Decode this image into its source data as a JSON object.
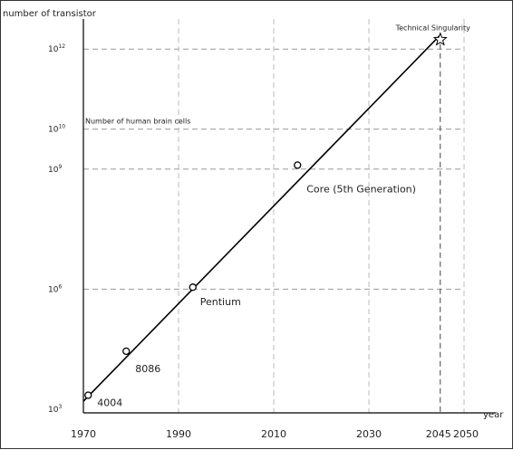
{
  "chart_data": {
    "type": "scatter",
    "title": "",
    "xlabel": "year",
    "ylabel": "number of transistor",
    "xlim": [
      1970,
      2050
    ],
    "y_scale": "log",
    "ylim_log10": [
      3,
      12.3
    ],
    "x_ticks": [
      {
        "value": 1970,
        "label": "1970"
      },
      {
        "value": 1990,
        "label": "1990"
      },
      {
        "value": 2010,
        "label": "2010"
      },
      {
        "value": 2030,
        "label": "2030"
      },
      {
        "value": 2045,
        "label": "2045"
      },
      {
        "value": 2050,
        "label": "2050"
      }
    ],
    "y_ticks": [
      {
        "log10": 3,
        "base": "10",
        "exp": "3"
      },
      {
        "log10": 6,
        "base": "10",
        "exp": "6"
      },
      {
        "log10": 9,
        "base": "10",
        "exp": "9"
      },
      {
        "log10": 10,
        "base": "10",
        "exp": "10"
      },
      {
        "log10": 12,
        "base": "10",
        "exp": "12"
      }
    ],
    "h_reference_lines": [
      {
        "log10": 6,
        "label": ""
      },
      {
        "log10": 9,
        "label": ""
      },
      {
        "log10": 10,
        "label": "Number of human brain cells"
      },
      {
        "log10": 12,
        "label": ""
      }
    ],
    "v_reference_lines": [
      1990,
      2010,
      2030,
      2050
    ],
    "v_marker_line": 2045,
    "points": [
      {
        "label": "4004",
        "x": 1971,
        "y_log10": 3.35
      },
      {
        "label": "8086",
        "x": 1979,
        "y_log10": 4.45
      },
      {
        "label": "Pentium",
        "x": 1993,
        "y_log10": 6.05
      },
      {
        "label": "Core (5th Generation)",
        "x": 2015,
        "y_log10": 9.1
      }
    ],
    "singularity": {
      "label": "Technical Singularity",
      "x": 2045,
      "y_log10": 12.35
    },
    "trend_line": {
      "x0": 1970,
      "y0_log10": 3.2,
      "x1": 2045,
      "y1_log10": 12.35
    },
    "grid": true,
    "gridline_color": "#999999",
    "line_color": "#000000"
  }
}
